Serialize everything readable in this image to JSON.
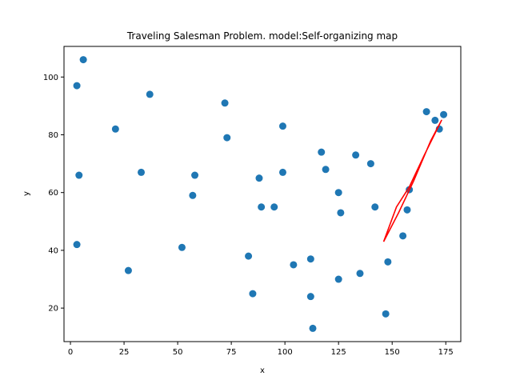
{
  "chart_data": {
    "type": "scatter",
    "title": "Traveling Salesman Problem. model:Self-organizing map",
    "xlabel": "x",
    "ylabel": "y",
    "xlim": [
      -3,
      182
    ],
    "ylim": [
      8.4,
      110.6
    ],
    "xticks": [
      0,
      25,
      50,
      75,
      100,
      125,
      150,
      175
    ],
    "yticks": [
      20,
      40,
      60,
      80,
      100
    ],
    "grid": false,
    "colors": {
      "points": "#1f77b4",
      "route": "#ff0000"
    },
    "points": [
      {
        "x": 6,
        "y": 106
      },
      {
        "x": 3,
        "y": 97
      },
      {
        "x": 37,
        "y": 94
      },
      {
        "x": 21,
        "y": 82
      },
      {
        "x": 72,
        "y": 91
      },
      {
        "x": 73,
        "y": 79
      },
      {
        "x": 99,
        "y": 83
      },
      {
        "x": 4,
        "y": 66
      },
      {
        "x": 33,
        "y": 67
      },
      {
        "x": 58,
        "y": 66
      },
      {
        "x": 57,
        "y": 59
      },
      {
        "x": 88,
        "y": 65
      },
      {
        "x": 99,
        "y": 67
      },
      {
        "x": 89,
        "y": 55
      },
      {
        "x": 95,
        "y": 55
      },
      {
        "x": 117,
        "y": 74
      },
      {
        "x": 119,
        "y": 68
      },
      {
        "x": 133,
        "y": 73
      },
      {
        "x": 140,
        "y": 70
      },
      {
        "x": 125,
        "y": 60
      },
      {
        "x": 126,
        "y": 53
      },
      {
        "x": 142,
        "y": 55
      },
      {
        "x": 3,
        "y": 42
      },
      {
        "x": 27,
        "y": 33
      },
      {
        "x": 52,
        "y": 41
      },
      {
        "x": 83,
        "y": 38
      },
      {
        "x": 85,
        "y": 25
      },
      {
        "x": 104,
        "y": 35
      },
      {
        "x": 112,
        "y": 37
      },
      {
        "x": 112,
        "y": 24
      },
      {
        "x": 113,
        "y": 13
      },
      {
        "x": 125,
        "y": 30
      },
      {
        "x": 135,
        "y": 32
      },
      {
        "x": 148,
        "y": 36
      },
      {
        "x": 147,
        "y": 18
      },
      {
        "x": 155,
        "y": 45
      },
      {
        "x": 157,
        "y": 54
      },
      {
        "x": 158,
        "y": 61
      },
      {
        "x": 166,
        "y": 88
      },
      {
        "x": 170,
        "y": 85
      },
      {
        "x": 174,
        "y": 87
      },
      {
        "x": 172,
        "y": 82
      }
    ],
    "route": [
      {
        "x": 146,
        "y": 43
      },
      {
        "x": 152,
        "y": 55
      },
      {
        "x": 158,
        "y": 62
      },
      {
        "x": 165,
        "y": 73
      },
      {
        "x": 171,
        "y": 82
      },
      {
        "x": 173,
        "y": 85
      },
      {
        "x": 168,
        "y": 78
      },
      {
        "x": 160,
        "y": 64
      },
      {
        "x": 153,
        "y": 53
      },
      {
        "x": 146,
        "y": 43
      }
    ]
  }
}
